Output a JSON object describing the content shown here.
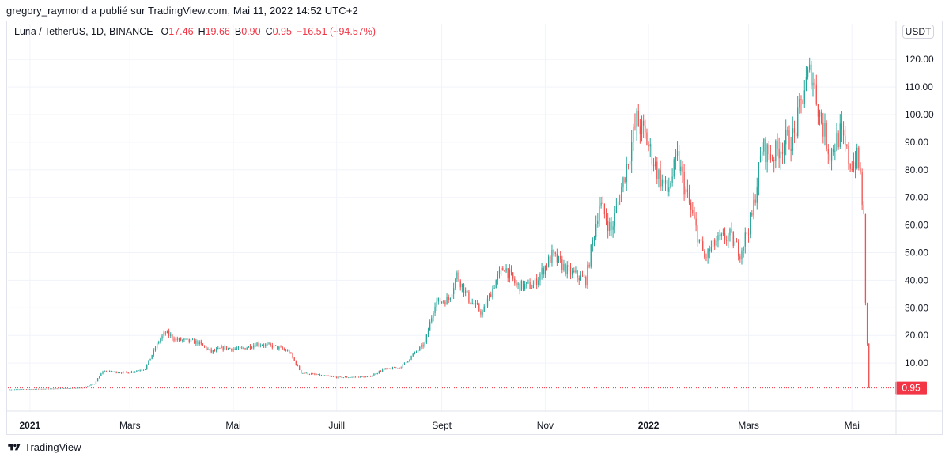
{
  "header": {
    "publisher_line": "gregory_raymond a publié sur TradingView.com, Mai 11, 2022 14:52 UTC+2"
  },
  "legend": {
    "symbol": "Luna / TetherUS, 1D, BINANCE",
    "open_label": "O",
    "open": "17.46",
    "high_label": "H",
    "high": "19.66",
    "low_label": "B",
    "low": "0.90",
    "close_label": "C",
    "close": "0.95",
    "change": "−16.51 (−94.57%)"
  },
  "currency": "USDT",
  "footer": {
    "brand": "TradingView",
    "logo_icon": "tradingview-logo-icon"
  },
  "colors": {
    "up": "#26a69a",
    "down": "#ef5350",
    "price_line": "#f23645",
    "grid": "#f0f3fa"
  },
  "chart_data": {
    "type": "candlestick",
    "symbol": "Luna / TetherUS",
    "interval": "1D",
    "exchange": "BINANCE",
    "y_ticks": [
      "10.00",
      "20.00",
      "30.00",
      "40.00",
      "50.00",
      "60.00",
      "70.00",
      "80.00",
      "90.00",
      "100.00",
      "110.00",
      "120.00"
    ],
    "ylim": [
      -10,
      130
    ],
    "x_labels": [
      {
        "label": "2021",
        "date": "2021-01-01",
        "year": true
      },
      {
        "label": "Mars",
        "date": "2021-03-01",
        "year": false
      },
      {
        "label": "Mai",
        "date": "2021-05-01",
        "year": false
      },
      {
        "label": "Juill",
        "date": "2021-07-01",
        "year": false
      },
      {
        "label": "Sept",
        "date": "2021-09-01",
        "year": false
      },
      {
        "label": "Nov",
        "date": "2021-11-01",
        "year": false
      },
      {
        "label": "2022",
        "date": "2022-01-01",
        "year": true
      },
      {
        "label": "Mars",
        "date": "2022-03-01",
        "year": false
      },
      {
        "label": "Mai",
        "date": "2022-05-01",
        "year": false
      }
    ],
    "x_range": [
      "2020-12-19",
      "2022-05-27"
    ],
    "last_price": "0.95",
    "close_path": [
      [
        "2020-12-20",
        0.4
      ],
      [
        "2021-01-15",
        0.7
      ],
      [
        "2021-02-01",
        1.0
      ],
      [
        "2021-02-08",
        2.5
      ],
      [
        "2021-02-13",
        7.0
      ],
      [
        "2021-02-28",
        6.5
      ],
      [
        "2021-03-10",
        8.0
      ],
      [
        "2021-03-18",
        18.0
      ],
      [
        "2021-03-22",
        21.0
      ],
      [
        "2021-03-28",
        18.5
      ],
      [
        "2021-04-10",
        17.5
      ],
      [
        "2021-04-18",
        14.0
      ],
      [
        "2021-04-25",
        15.5
      ],
      [
        "2021-05-05",
        15.0
      ],
      [
        "2021-05-15",
        17.0
      ],
      [
        "2021-05-25",
        16.0
      ],
      [
        "2021-05-30",
        15.0
      ],
      [
        "2021-06-03",
        14.0
      ],
      [
        "2021-06-10",
        6.5
      ],
      [
        "2021-06-22",
        5.5
      ],
      [
        "2021-07-01",
        4.8
      ],
      [
        "2021-07-20",
        5.0
      ],
      [
        "2021-07-28",
        7.5
      ],
      [
        "2021-08-08",
        8.5
      ],
      [
        "2021-08-15",
        13.0
      ],
      [
        "2021-08-22",
        17.0
      ],
      [
        "2021-08-28",
        32.0
      ],
      [
        "2021-09-05",
        33.0
      ],
      [
        "2021-09-10",
        42.0
      ],
      [
        "2021-09-17",
        33.0
      ],
      [
        "2021-09-25",
        28.0
      ],
      [
        "2021-10-03",
        40.0
      ],
      [
        "2021-10-08",
        45.0
      ],
      [
        "2021-10-15",
        38.0
      ],
      [
        "2021-10-25",
        38.0
      ],
      [
        "2021-11-05",
        49.0
      ],
      [
        "2021-11-15",
        43.0
      ],
      [
        "2021-11-25",
        40.0
      ],
      [
        "2021-12-03",
        68.0
      ],
      [
        "2021-12-10",
        58.0
      ],
      [
        "2021-12-17",
        76.0
      ],
      [
        "2021-12-25",
        98.0
      ],
      [
        "2021-12-30",
        92.0
      ],
      [
        "2022-01-07",
        78.0
      ],
      [
        "2022-01-12",
        72.0
      ],
      [
        "2022-01-18",
        84.0
      ],
      [
        "2022-01-26",
        65.0
      ],
      [
        "2022-02-03",
        48.0
      ],
      [
        "2022-02-10",
        54.0
      ],
      [
        "2022-02-18",
        56.0
      ],
      [
        "2022-02-24",
        50.0
      ],
      [
        "2022-03-03",
        63.0
      ],
      [
        "2022-03-09",
        88.0
      ],
      [
        "2022-03-15",
        85.0
      ],
      [
        "2022-03-22",
        90.0
      ],
      [
        "2022-03-28",
        92.0
      ],
      [
        "2022-04-03",
        110.0
      ],
      [
        "2022-04-07",
        116.0
      ],
      [
        "2022-04-12",
        100.0
      ],
      [
        "2022-04-18",
        86.0
      ],
      [
        "2022-04-24",
        93.0
      ],
      [
        "2022-04-30",
        82.0
      ],
      [
        "2022-05-04",
        84.0
      ],
      [
        "2022-05-06",
        78.0
      ],
      [
        "2022-05-07",
        69.0
      ],
      [
        "2022-05-08",
        62.0
      ],
      [
        "2022-05-09",
        31.0
      ],
      [
        "2022-05-10",
        17.46
      ],
      [
        "2022-05-11",
        0.95
      ]
    ]
  }
}
